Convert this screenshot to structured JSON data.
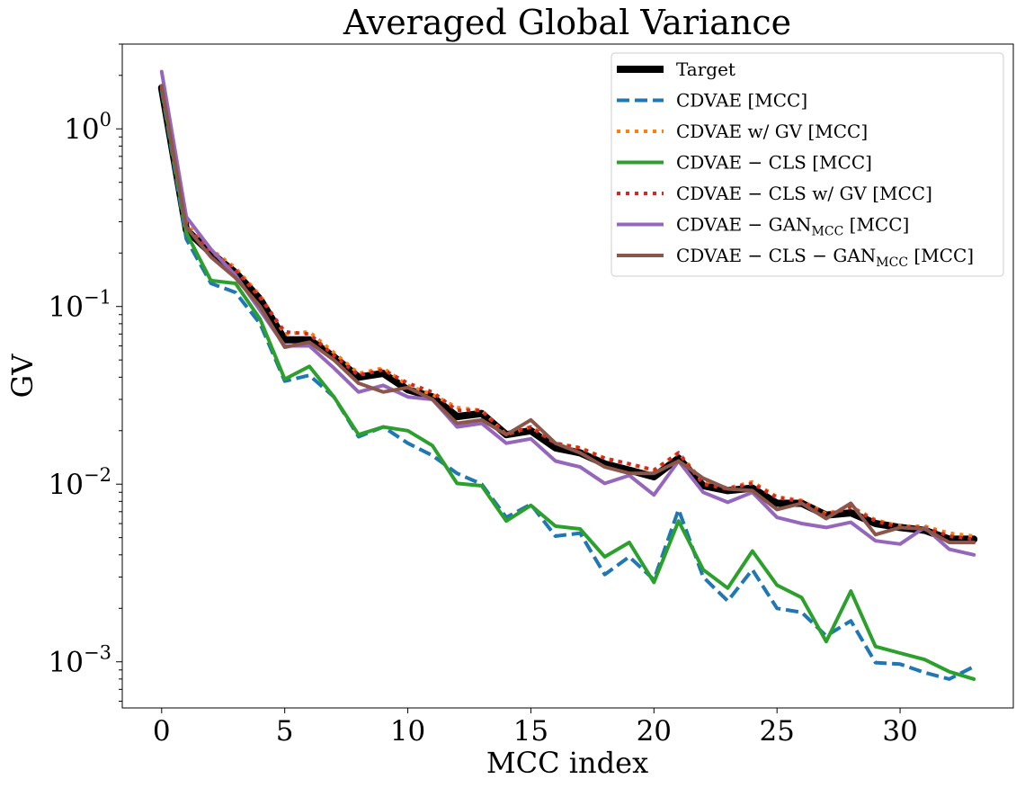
{
  "chart_data": {
    "type": "line",
    "title": "Averaged Global Variance",
    "xlabel": "MCC index",
    "ylabel": "GV",
    "yscale": "log",
    "xlim": [
      -1.6,
      34.6
    ],
    "ylim": [
      0.00055,
      3.0
    ],
    "xticks": [
      0,
      5,
      10,
      15,
      20,
      25,
      30
    ],
    "xtick_labels": [
      "0",
      "5",
      "10",
      "15",
      "20",
      "25",
      "30"
    ],
    "yticks": [
      1.0,
      0.1,
      0.01,
      0.001
    ],
    "ytick_labels": [
      {
        "base": "10",
        "exp": "0"
      },
      {
        "base": "10",
        "exp": "−1"
      },
      {
        "base": "10",
        "exp": "−2"
      },
      {
        "base": "10",
        "exp": "−3"
      }
    ],
    "legend_position": "upper right",
    "series": [
      {
        "name": "Target",
        "label": {
          "parts": [
            {
              "t": "Target"
            }
          ]
        },
        "color": "#000000",
        "dash": "solid",
        "width": 8,
        "values": [
          1.7,
          0.27,
          0.2,
          0.155,
          0.11,
          0.065,
          0.065,
          0.052,
          0.04,
          0.042,
          0.034,
          0.031,
          0.024,
          0.025,
          0.019,
          0.02,
          0.016,
          0.015,
          0.013,
          0.012,
          0.011,
          0.014,
          0.0098,
          0.0092,
          0.0095,
          0.0078,
          0.0078,
          0.0067,
          0.0069,
          0.006,
          0.0057,
          0.0055,
          0.0049,
          0.0049
        ]
      },
      {
        "name": "CDVAE [MCC]",
        "label": {
          "parts": [
            {
              "t": "CDVAE [MCC]"
            }
          ]
        },
        "color": "#1f77b4",
        "dash": "dashed",
        "width": 4,
        "values": [
          1.65,
          0.24,
          0.135,
          0.12,
          0.08,
          0.038,
          0.041,
          0.031,
          0.0185,
          0.021,
          0.017,
          0.0145,
          0.0115,
          0.01,
          0.0065,
          0.0077,
          0.0051,
          0.0053,
          0.0031,
          0.0039,
          0.0029,
          0.0072,
          0.003,
          0.0022,
          0.0033,
          0.002,
          0.0019,
          0.0014,
          0.0017,
          0.00099,
          0.00097,
          0.00087,
          0.0008,
          0.00094
        ]
      },
      {
        "name": "CDVAE w/ GV [MCC]",
        "label": {
          "parts": [
            {
              "t": "CDVAE w/ GV [MCC]"
            }
          ]
        },
        "color": "#ff7f0e",
        "dash": "dotted",
        "width": 4,
        "values": [
          1.7,
          0.29,
          0.21,
          0.165,
          0.115,
          0.07,
          0.072,
          0.055,
          0.042,
          0.045,
          0.036,
          0.032,
          0.027,
          0.026,
          0.019,
          0.021,
          0.017,
          0.016,
          0.014,
          0.013,
          0.012,
          0.015,
          0.0103,
          0.0095,
          0.0103,
          0.0085,
          0.0081,
          0.0068,
          0.0075,
          0.0063,
          0.0058,
          0.0058,
          0.0053,
          0.0051
        ]
      },
      {
        "name": "CDVAE − CLS [MCC]",
        "label": {
          "parts": [
            {
              "t": "CDVAE − CLS [MCC]"
            }
          ]
        },
        "color": "#2ca02c",
        "dash": "solid",
        "width": 4,
        "values": [
          1.7,
          0.26,
          0.14,
          0.135,
          0.085,
          0.039,
          0.046,
          0.031,
          0.019,
          0.021,
          0.02,
          0.0165,
          0.0101,
          0.0098,
          0.0062,
          0.0076,
          0.0058,
          0.0056,
          0.0039,
          0.0047,
          0.0028,
          0.0062,
          0.0033,
          0.0026,
          0.0042,
          0.0027,
          0.0023,
          0.0013,
          0.0025,
          0.00122,
          0.00112,
          0.00103,
          0.00088,
          0.0008
        ]
      },
      {
        "name": "CDVAE − CLS w/ GV [MCC]",
        "label": {
          "parts": [
            {
              "t": "CDVAE − CLS w/ GV [MCC]"
            }
          ]
        },
        "color": "#d62728",
        "dash": "dotted",
        "width": 4,
        "values": [
          1.7,
          0.28,
          0.205,
          0.16,
          0.112,
          0.072,
          0.07,
          0.053,
          0.041,
          0.044,
          0.037,
          0.033,
          0.026,
          0.026,
          0.019,
          0.021,
          0.017,
          0.016,
          0.014,
          0.013,
          0.012,
          0.015,
          0.01,
          0.0094,
          0.0101,
          0.0084,
          0.008,
          0.0067,
          0.0074,
          0.0062,
          0.0057,
          0.0057,
          0.0051,
          0.0049
        ]
      },
      {
        "name": "CDVAE − GAN_MCC [MCC]",
        "label": {
          "parts": [
            {
              "t": "CDVAE − GAN"
            },
            {
              "t": "MCC",
              "sub": true
            },
            {
              "t": " [MCC]"
            }
          ]
        },
        "color": "#9467bd",
        "dash": "solid",
        "width": 4,
        "values": [
          2.1,
          0.32,
          0.21,
          0.15,
          0.095,
          0.06,
          0.06,
          0.045,
          0.033,
          0.036,
          0.031,
          0.03,
          0.021,
          0.022,
          0.017,
          0.018,
          0.0135,
          0.0125,
          0.0101,
          0.0112,
          0.0087,
          0.0135,
          0.009,
          0.0079,
          0.009,
          0.0065,
          0.006,
          0.0057,
          0.0061,
          0.0048,
          0.0046,
          0.0057,
          0.0043,
          0.004
        ]
      },
      {
        "name": "CDVAE − CLS − GAN_MCC [MCC]",
        "label": {
          "parts": [
            {
              "t": "CDVAE − CLS − GAN"
            },
            {
              "t": "MCC",
              "sub": true
            },
            {
              "t": " [MCC]"
            }
          ]
        },
        "color": "#8c564b",
        "dash": "solid",
        "width": 4,
        "values": [
          1.75,
          0.28,
          0.19,
          0.145,
          0.1,
          0.059,
          0.063,
          0.05,
          0.037,
          0.033,
          0.035,
          0.03,
          0.022,
          0.023,
          0.019,
          0.023,
          0.017,
          0.015,
          0.0125,
          0.0115,
          0.0115,
          0.0135,
          0.0108,
          0.0094,
          0.0092,
          0.0072,
          0.0078,
          0.0064,
          0.0078,
          0.0052,
          0.0057,
          0.0056,
          0.0047,
          0.0047
        ]
      }
    ]
  }
}
